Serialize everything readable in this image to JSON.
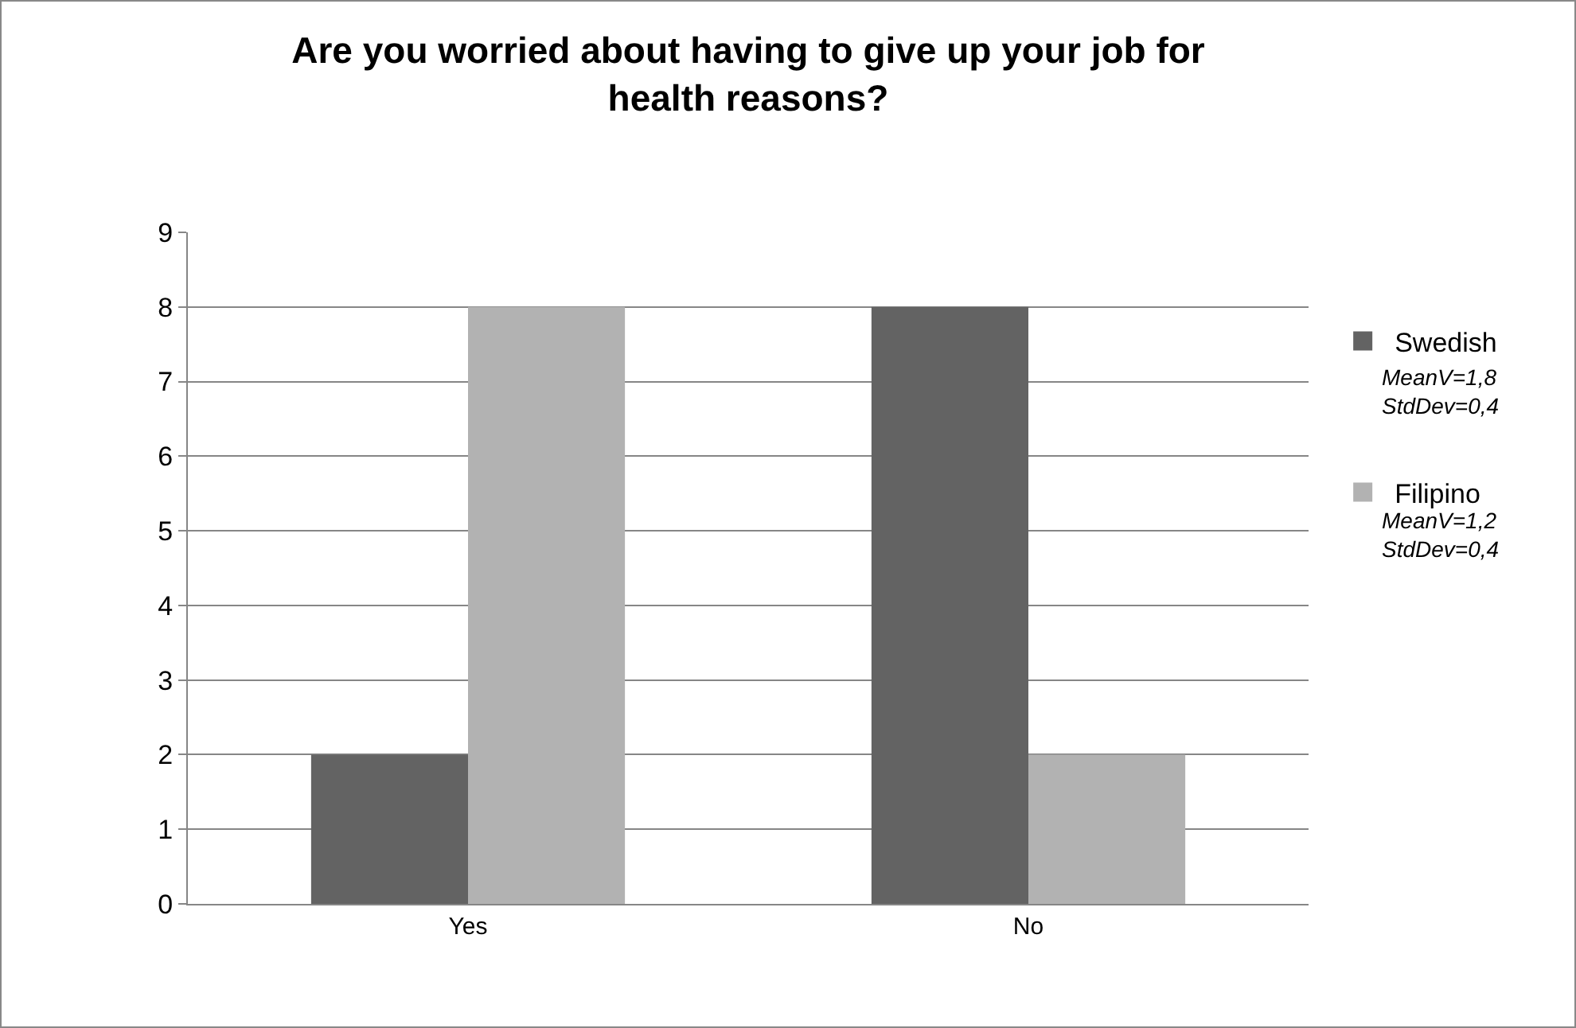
{
  "chart_data": {
    "type": "bar",
    "title": "Are you worried about having to give up your job for health reasons?",
    "categories": [
      "Yes",
      "No"
    ],
    "series": [
      {
        "name": "Swedish",
        "color": "#636363",
        "values": [
          2,
          8
        ]
      },
      {
        "name": "Filipino",
        "color": "#b2b2b2",
        "values": [
          8,
          2
        ]
      }
    ],
    "annotations": [
      "MeanV=1,8\nStdDev=0,4",
      "MeanV=1,2\nStdDev=0,4"
    ],
    "ylim": [
      0,
      9
    ],
    "yticks": [
      0,
      1,
      2,
      3,
      4,
      5,
      6,
      7,
      8,
      9
    ],
    "grid": "y",
    "legend": "right"
  }
}
